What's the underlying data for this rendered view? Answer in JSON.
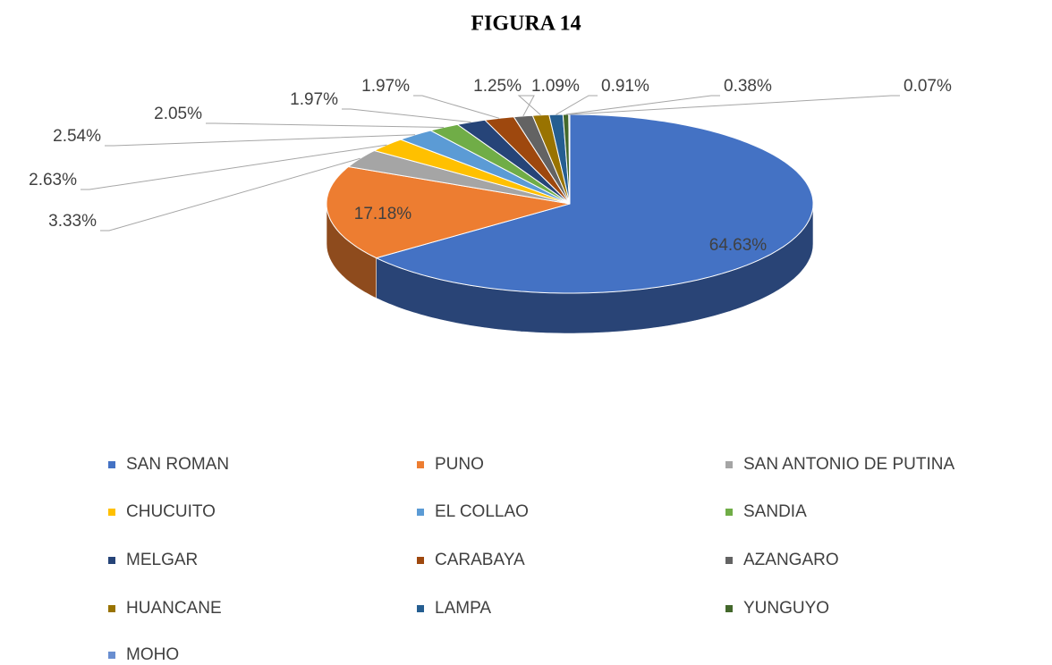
{
  "chart_data": {
    "type": "pie",
    "title": "FIGURA 14",
    "categories": [
      "SAN ROMAN",
      "PUNO",
      "SAN ANTONIO DE PUTINA",
      "CHUCUITO",
      "EL COLLAO",
      "SANDIA",
      "MELGAR",
      "CARABAYA",
      "AZANGARO",
      "HUANCANE",
      "LAMPA",
      "YUNGUYO",
      "MOHO"
    ],
    "values": [
      64.63,
      17.18,
      3.33,
      2.63,
      2.54,
      2.05,
      1.97,
      1.97,
      1.25,
      1.09,
      0.91,
      0.38,
      0.07
    ],
    "value_labels": [
      "64.63%",
      "17.18%",
      "3.33%",
      "2.63%",
      "2.54%",
      "2.05%",
      "1.97%",
      "1.97%",
      "1.25%",
      "1.09%",
      "0.91%",
      "0.38%",
      "0.07%"
    ],
    "colors": [
      "#4472c4",
      "#ed7d31",
      "#a5a5a5",
      "#ffc000",
      "#5b9bd5",
      "#70ad47",
      "#264478",
      "#9e480e",
      "#636363",
      "#997300",
      "#255e91",
      "#43682b",
      "#698ed0"
    ],
    "legend": "bottom"
  }
}
